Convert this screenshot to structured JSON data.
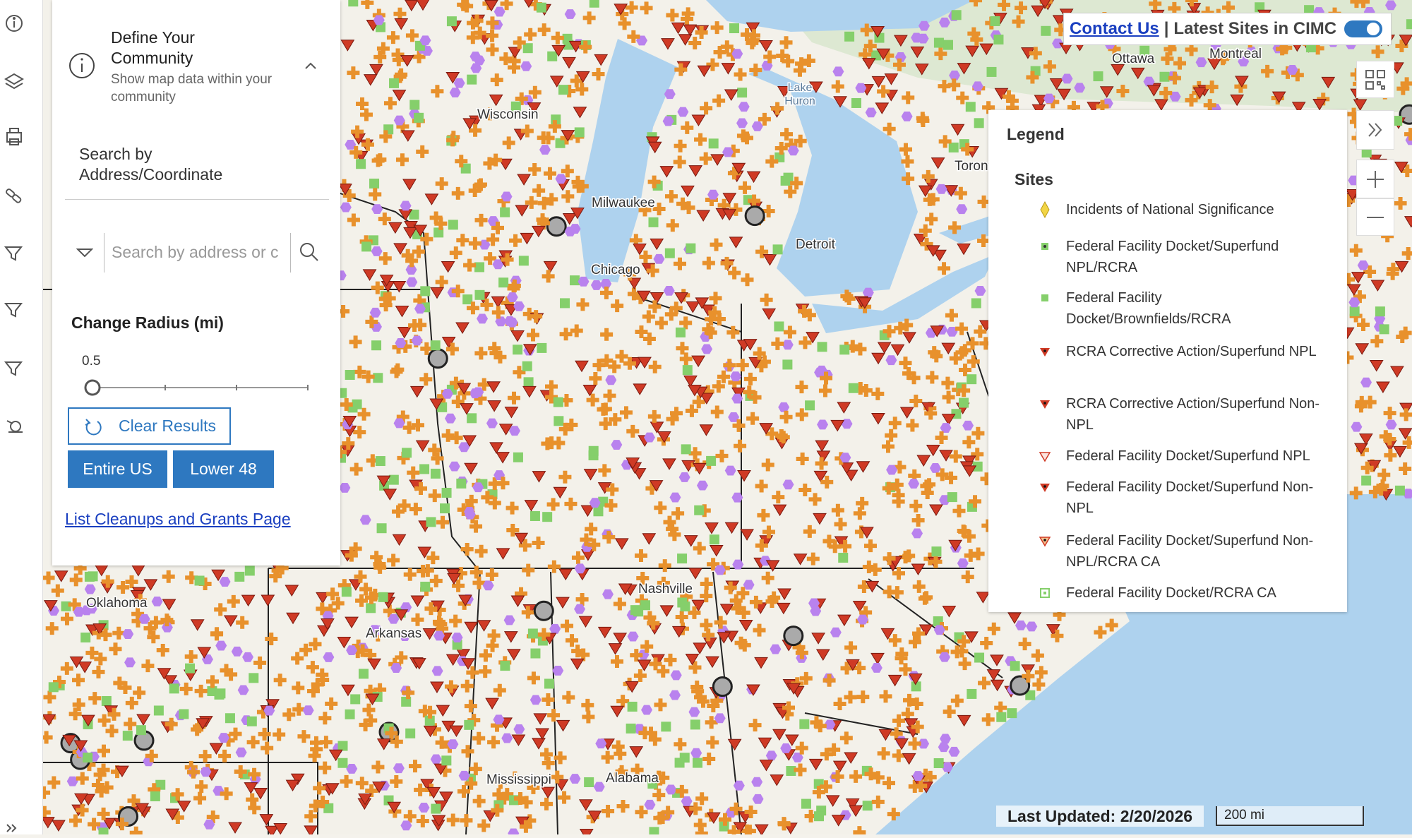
{
  "panel": {
    "title": "Define Your Community",
    "subtitle": "Show map data within your community",
    "search_label": "Search by Address/Coordinate",
    "search_placeholder": "Search by address or c",
    "radius_label": "Change Radius (mi)",
    "radius_value": "0.5",
    "clear_button": "Clear Results",
    "buttons": [
      "Entire US",
      "Lower 48"
    ],
    "link": "List Cleanups and Grants Page"
  },
  "header": {
    "contact_link": "Contact Us",
    "separator": "|",
    "toggle_label": "Latest Sites in CIMC"
  },
  "legend": {
    "title": "Legend",
    "section": "Sites",
    "items": [
      "Incidents of National Significance",
      "Federal Facility Docket/Superfund NPL/RCRA",
      "Federal Facility Docket/Brownfields/RCRA",
      "RCRA Corrective Action/Superfund NPL",
      "RCRA Corrective Action/Superfund Non-NPL",
      "Federal Facility Docket/Superfund NPL",
      "Federal Facility Docket/Superfund Non-NPL",
      "Federal Facility Docket/Superfund Non-NPL/RCRA CA",
      "Federal Facility Docket/RCRA CA"
    ]
  },
  "footer": {
    "last_updated": "Last Updated: 2/20/2026",
    "scale": "200 mi"
  },
  "map_labels": [
    "Ottawa",
    "Montreal",
    "Lake",
    "Huron",
    "Toronto",
    "Milwaukee",
    "Chicago",
    "Detroit",
    "Wisconsin",
    "Oklahoma",
    "Arkansas",
    "Nashville",
    "Alabama",
    "Mississippi"
  ]
}
